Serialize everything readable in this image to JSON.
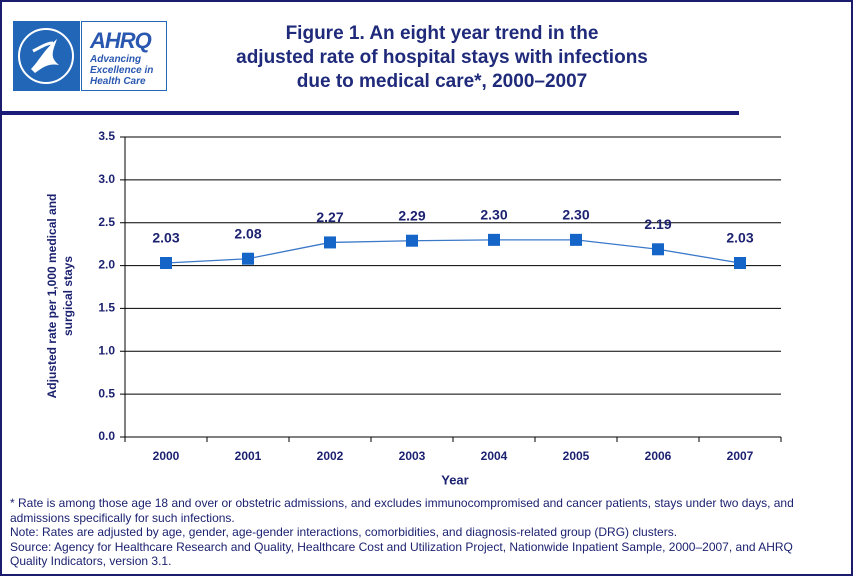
{
  "logo": {
    "agency": "AHRQ",
    "tagline": "Advancing\nExcellence in\nHealth Care"
  },
  "chart_data": {
    "type": "line",
    "title": "Figure 1. An eight year trend in the\nadjusted rate of hospital stays with infections\ndue to medical care*, 2000–2007",
    "x_label": "Year",
    "y_label": "Adjusted rate per 1,000 medical and\nsurgical stays",
    "categories": [
      "2000",
      "2001",
      "2002",
      "2003",
      "2004",
      "2005",
      "2006",
      "2007"
    ],
    "series": [
      {
        "name": "Adjusted rate",
        "color": "#1565c8",
        "line_color": "#3a78c8",
        "values": [
          2.03,
          2.08,
          2.27,
          2.29,
          2.3,
          2.3,
          2.19,
          2.03
        ],
        "value_labels": [
          "2.03",
          "2.08",
          "2.27",
          "2.29",
          "2.30",
          "2.30",
          "2.19",
          "2.03"
        ]
      }
    ],
    "ylim": [
      0,
      3.5
    ],
    "yticks": [
      {
        "value": 0,
        "label": "0.0"
      },
      0.5,
      {
        "value": 1,
        "label": "1.0"
      },
      1.5,
      {
        "value": 2,
        "label": "2.0"
      },
      2.5,
      {
        "value": 3,
        "label": "3.0"
      },
      3.5
    ],
    "grid": true
  },
  "notes": [
    "* Rate is among those age 18 and over or obstetric admissions, and excludes immunocompromised and cancer patients, stays under two days, and admissions specifically for such infections.",
    "Note: Rates are adjusted by age, gender, age-gender interactions, comorbidities, and diagnosis-related group (DRG) clusters.",
    "Source: Agency for Healthcare Research and Quality, Healthcare Cost and Utilization Project, Nationwide Inpatient Sample, 2000–2007, and AHRQ Quality Indicators, version 3.1."
  ]
}
